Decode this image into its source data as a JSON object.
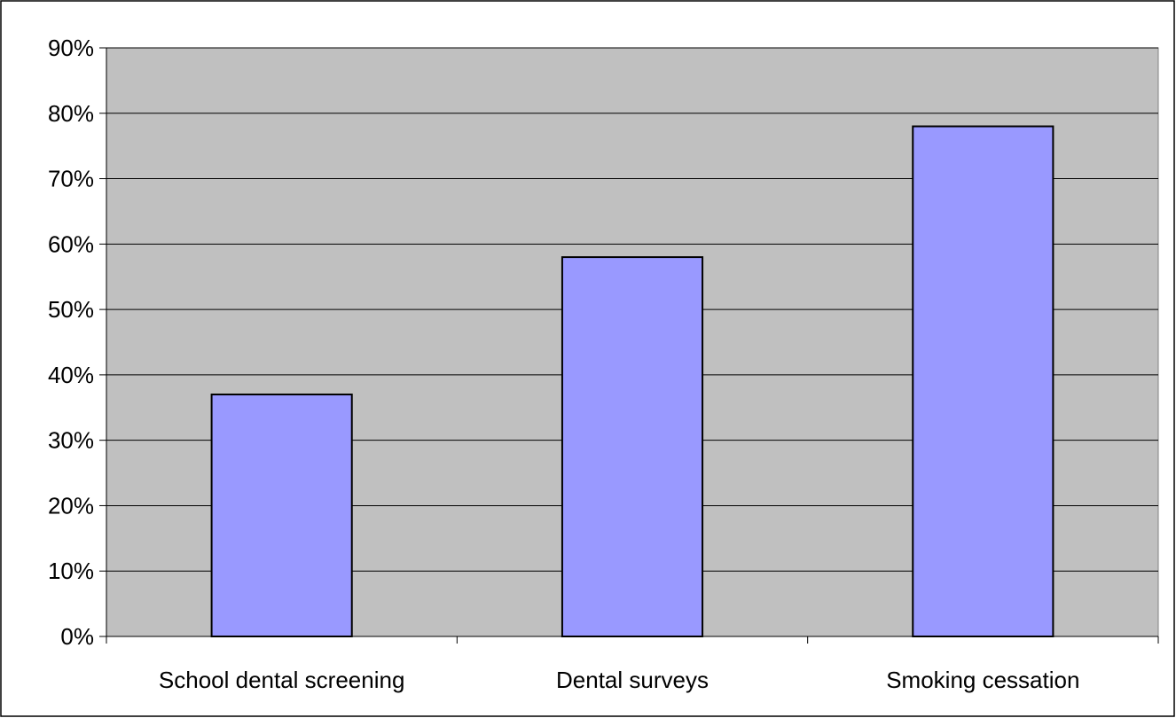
{
  "chart_data": {
    "type": "bar",
    "categories": [
      "School dental screening",
      "Dental surveys",
      "Smoking cessation"
    ],
    "values": [
      37,
      58,
      78
    ],
    "ylim": [
      0,
      90
    ],
    "yticks": [
      0,
      10,
      20,
      30,
      40,
      50,
      60,
      70,
      80,
      90
    ],
    "ytick_labels": [
      "0%",
      "10%",
      "20%",
      "30%",
      "40%",
      "50%",
      "60%",
      "70%",
      "80%",
      "90%"
    ],
    "grid": true,
    "colors": {
      "bar_fill": "#9999ff",
      "plot_background": "#c0c0c0",
      "gridline": "#000000"
    }
  }
}
